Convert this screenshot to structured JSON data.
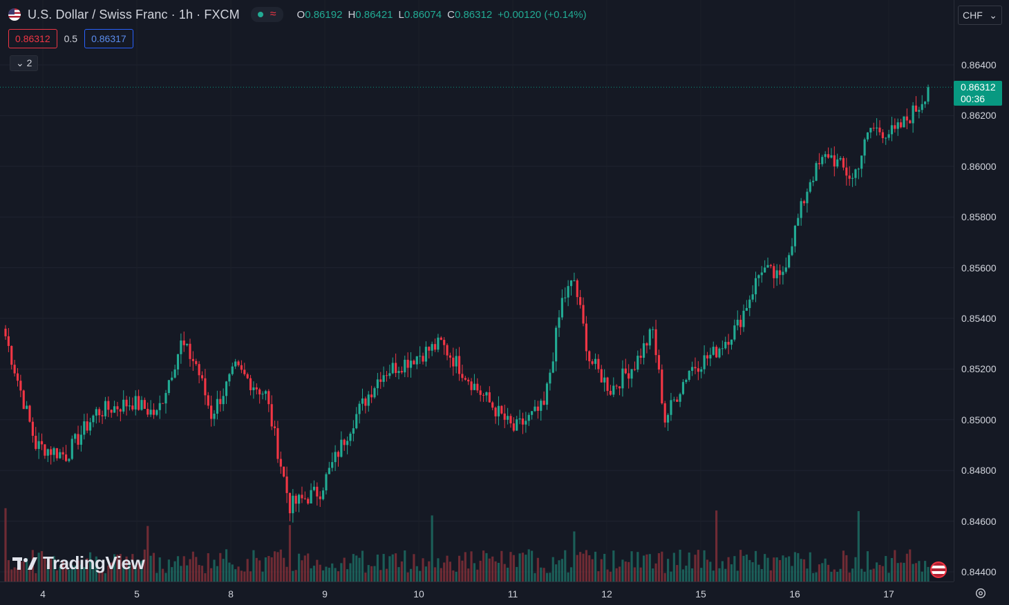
{
  "header": {
    "symbol_title": "U.S. Dollar / Swiss Franc · 1h · FXCM",
    "ohlc": {
      "o_label": "O",
      "o_value": "0.86192",
      "h_label": "H",
      "h_value": "0.86421",
      "l_label": "L",
      "l_value": "0.86074",
      "c_label": "C",
      "c_value": "0.86312",
      "change": "+0.00120 (+0.14%)"
    },
    "bid": "0.86312",
    "spread": "0.5",
    "ask": "0.86317",
    "collapse_count": "2",
    "currency": "CHF"
  },
  "price_tag": {
    "price": "0.86312",
    "countdown": "00:36"
  },
  "watermark": "TradingView",
  "colors": {
    "up": "#22ab94",
    "down": "#f23645",
    "up_volume": "#1c6b61",
    "down_volume": "#7f2f37",
    "background": "#151924",
    "grid": "#1f2330"
  },
  "chart_data": {
    "type": "candlestick",
    "title": "U.S. Dollar / Swiss Franc · 1h · FXCM",
    "y_ticks": [
      "0.86400",
      "0.86200",
      "0.86000",
      "0.85800",
      "0.85600",
      "0.85400",
      "0.85200",
      "0.85000",
      "0.84800",
      "0.84600",
      "0.84400"
    ],
    "ylim": [
      0.844,
      0.864
    ],
    "x_ticks": [
      "4",
      "5",
      "8",
      "9",
      "10",
      "11",
      "12",
      "15",
      "16",
      "17"
    ],
    "last_price": 0.86312,
    "grid": true,
    "anchors": [
      {
        "i": 0,
        "p": 0.8533
      },
      {
        "i": 10,
        "p": 0.849
      },
      {
        "i": 20,
        "p": 0.8486
      },
      {
        "i": 30,
        "p": 0.8503
      },
      {
        "i": 42,
        "p": 0.8507
      },
      {
        "i": 50,
        "p": 0.8502
      },
      {
        "i": 58,
        "p": 0.853
      },
      {
        "i": 63,
        "p": 0.8522
      },
      {
        "i": 68,
        "p": 0.8502
      },
      {
        "i": 76,
        "p": 0.852
      },
      {
        "i": 86,
        "p": 0.851
      },
      {
        "i": 94,
        "p": 0.8466
      },
      {
        "i": 104,
        "p": 0.8472
      },
      {
        "i": 115,
        "p": 0.85
      },
      {
        "i": 124,
        "p": 0.8518
      },
      {
        "i": 134,
        "p": 0.8524
      },
      {
        "i": 144,
        "p": 0.853
      },
      {
        "i": 156,
        "p": 0.8512
      },
      {
        "i": 168,
        "p": 0.8496
      },
      {
        "i": 178,
        "p": 0.8505
      },
      {
        "i": 184,
        "p": 0.8547
      },
      {
        "i": 188,
        "p": 0.8555
      },
      {
        "i": 193,
        "p": 0.8524
      },
      {
        "i": 200,
        "p": 0.8512
      },
      {
        "i": 208,
        "p": 0.8522
      },
      {
        "i": 214,
        "p": 0.8535
      },
      {
        "i": 218,
        "p": 0.85
      },
      {
        "i": 226,
        "p": 0.852
      },
      {
        "i": 234,
        "p": 0.8526
      },
      {
        "i": 242,
        "p": 0.8537
      },
      {
        "i": 250,
        "p": 0.856
      },
      {
        "i": 256,
        "p": 0.8555
      },
      {
        "i": 266,
        "p": 0.8595
      },
      {
        "i": 272,
        "p": 0.8605
      },
      {
        "i": 280,
        "p": 0.8595
      },
      {
        "i": 286,
        "p": 0.8615
      },
      {
        "i": 294,
        "p": 0.8613
      },
      {
        "i": 302,
        "p": 0.8624
      },
      {
        "i": 305,
        "p": 0.8631
      }
    ],
    "volume_ticks": "none"
  },
  "layout_note": ""
}
